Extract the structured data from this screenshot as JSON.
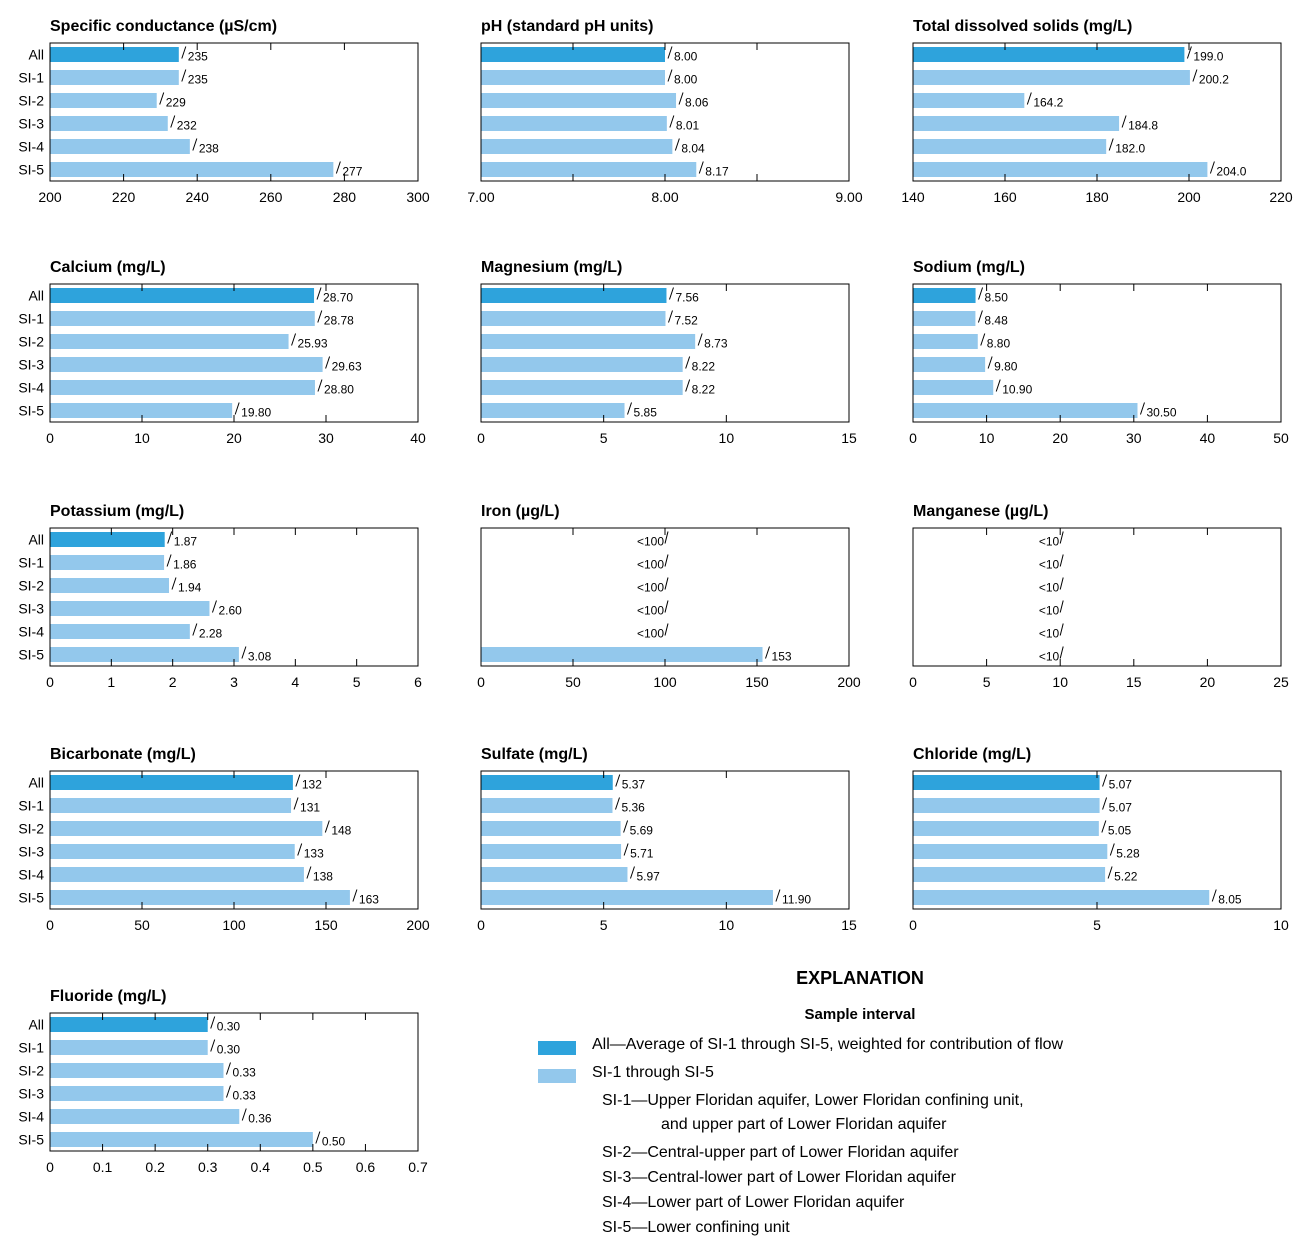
{
  "colors": {
    "all_bar": "#2EA3DC",
    "si_bar": "#93C8EC",
    "frame": "#000000"
  },
  "categories": [
    "All",
    "SI-1",
    "SI-2",
    "SI-3",
    "SI-4",
    "SI-5"
  ],
  "chart_data": [
    {
      "type": "bar",
      "orientation": "horizontal",
      "title": "Specific conductance (µS/cm)",
      "categories": [
        "All",
        "SI-1",
        "SI-2",
        "SI-3",
        "SI-4",
        "SI-5"
      ],
      "values": [
        235,
        235,
        229,
        232,
        238,
        277
      ],
      "labels": [
        "235",
        "235",
        "229",
        "232",
        "238",
        "277"
      ],
      "xlim": [
        200,
        300
      ],
      "ticks": [
        200,
        220,
        240,
        260,
        280,
        300
      ],
      "tick_labels": [
        "200",
        "220",
        "240",
        "260",
        "280",
        "300"
      ]
    },
    {
      "type": "bar",
      "orientation": "horizontal",
      "title": "pH (standard pH units)",
      "categories": [
        "All",
        "SI-1",
        "SI-2",
        "SI-3",
        "SI-4",
        "SI-5"
      ],
      "values": [
        8.0,
        8.0,
        8.06,
        8.01,
        8.04,
        8.17
      ],
      "labels": [
        "8.00",
        "8.00",
        "8.06",
        "8.01",
        "8.04",
        "8.17"
      ],
      "xlim": [
        7,
        9
      ],
      "ticks": [
        7,
        8,
        9
      ],
      "tick_labels": [
        "7.00",
        "8.00",
        "9.00"
      ],
      "minor_ticks": [
        7.5,
        8.5
      ]
    },
    {
      "type": "bar",
      "orientation": "horizontal",
      "title": "Total dissolved solids (mg/L)",
      "categories": [
        "All",
        "SI-1",
        "SI-2",
        "SI-3",
        "SI-4",
        "SI-5"
      ],
      "values": [
        199.0,
        200.2,
        164.2,
        184.8,
        182.0,
        204.0
      ],
      "labels": [
        "199.0",
        "200.2",
        "164.2",
        "184.8",
        "182.0",
        "204.0"
      ],
      "xlim": [
        140,
        220
      ],
      "ticks": [
        140,
        160,
        180,
        200,
        220
      ],
      "tick_labels": [
        "140",
        "160",
        "180",
        "200",
        "220"
      ]
    },
    {
      "type": "bar",
      "orientation": "horizontal",
      "title": "Calcium (mg/L)",
      "categories": [
        "All",
        "SI-1",
        "SI-2",
        "SI-3",
        "SI-4",
        "SI-5"
      ],
      "values": [
        28.7,
        28.78,
        25.93,
        29.63,
        28.8,
        19.8
      ],
      "labels": [
        "28.70",
        "28.78",
        "25.93",
        "29.63",
        "28.80",
        "19.80"
      ],
      "xlim": [
        0,
        40
      ],
      "ticks": [
        0,
        10,
        20,
        30,
        40
      ],
      "tick_labels": [
        "0",
        "10",
        "20",
        "30",
        "40"
      ]
    },
    {
      "type": "bar",
      "orientation": "horizontal",
      "title": "Magnesium (mg/L)",
      "categories": [
        "All",
        "SI-1",
        "SI-2",
        "SI-3",
        "SI-4",
        "SI-5"
      ],
      "values": [
        7.56,
        7.52,
        8.73,
        8.22,
        8.22,
        5.85
      ],
      "labels": [
        "7.56",
        "7.52",
        "8.73",
        "8.22",
        "8.22",
        "5.85"
      ],
      "xlim": [
        0,
        15
      ],
      "ticks": [
        0,
        5,
        10,
        15
      ],
      "tick_labels": [
        "0",
        "5",
        "10",
        "15"
      ]
    },
    {
      "type": "bar",
      "orientation": "horizontal",
      "title": "Sodium (mg/L)",
      "categories": [
        "All",
        "SI-1",
        "SI-2",
        "SI-3",
        "SI-4",
        "SI-5"
      ],
      "values": [
        8.5,
        8.48,
        8.8,
        9.8,
        10.9,
        30.5
      ],
      "labels": [
        "8.50",
        "8.48",
        "8.80",
        "9.80",
        "10.90",
        "30.50"
      ],
      "xlim": [
        0,
        50
      ],
      "ticks": [
        0,
        10,
        20,
        30,
        40,
        50
      ],
      "tick_labels": [
        "0",
        "10",
        "20",
        "30",
        "40",
        "50"
      ]
    },
    {
      "type": "bar",
      "orientation": "horizontal",
      "title": "Potassium (mg/L)",
      "categories": [
        "All",
        "SI-1",
        "SI-2",
        "SI-3",
        "SI-4",
        "SI-5"
      ],
      "values": [
        1.87,
        1.86,
        1.94,
        2.6,
        2.28,
        3.08
      ],
      "labels": [
        "1.87",
        "1.86",
        "1.94",
        "2.60",
        "2.28",
        "3.08"
      ],
      "xlim": [
        0,
        6
      ],
      "ticks": [
        0,
        1,
        2,
        3,
        4,
        5,
        6
      ],
      "tick_labels": [
        "0",
        "1",
        "2",
        "3",
        "4",
        "5",
        "6"
      ]
    },
    {
      "type": "bar",
      "orientation": "horizontal",
      "title": "Iron (µg/L)",
      "categories": [
        "All",
        "SI-1",
        "SI-2",
        "SI-3",
        "SI-4",
        "SI-5"
      ],
      "values": [
        null,
        null,
        null,
        null,
        null,
        153
      ],
      "labels": [
        "<100",
        "<100",
        "<100",
        "<100",
        "<100",
        "153"
      ],
      "censored_at": 100,
      "xlim": [
        0,
        200
      ],
      "ticks": [
        0,
        50,
        100,
        150,
        200
      ],
      "tick_labels": [
        "0",
        "50",
        "100",
        "150",
        "200"
      ]
    },
    {
      "type": "bar",
      "orientation": "horizontal",
      "title": "Manganese (µg/L)",
      "categories": [
        "All",
        "SI-1",
        "SI-2",
        "SI-3",
        "SI-4",
        "SI-5"
      ],
      "values": [
        null,
        null,
        null,
        null,
        null,
        null
      ],
      "labels": [
        "<10",
        "<10",
        "<10",
        "<10",
        "<10",
        "<10"
      ],
      "censored_at": 10,
      "xlim": [
        0,
        25
      ],
      "ticks": [
        0,
        5,
        10,
        15,
        20,
        25
      ],
      "tick_labels": [
        "0",
        "5",
        "10",
        "15",
        "20",
        "25"
      ]
    },
    {
      "type": "bar",
      "orientation": "horizontal",
      "title": "Bicarbonate (mg/L)",
      "categories": [
        "All",
        "SI-1",
        "SI-2",
        "SI-3",
        "SI-4",
        "SI-5"
      ],
      "values": [
        132,
        131,
        148,
        133,
        138,
        163
      ],
      "labels": [
        "132",
        "131",
        "148",
        "133",
        "138",
        "163"
      ],
      "xlim": [
        0,
        200
      ],
      "ticks": [
        0,
        50,
        100,
        150,
        200
      ],
      "tick_labels": [
        "0",
        "50",
        "100",
        "150",
        "200"
      ]
    },
    {
      "type": "bar",
      "orientation": "horizontal",
      "title": "Sulfate (mg/L)",
      "categories": [
        "All",
        "SI-1",
        "SI-2",
        "SI-3",
        "SI-4",
        "SI-5"
      ],
      "values": [
        5.37,
        5.36,
        5.69,
        5.71,
        5.97,
        11.9
      ],
      "labels": [
        "5.37",
        "5.36",
        "5.69",
        "5.71",
        "5.97",
        "11.90"
      ],
      "xlim": [
        0,
        15
      ],
      "ticks": [
        0,
        5,
        10,
        15
      ],
      "tick_labels": [
        "0",
        "5",
        "10",
        "15"
      ]
    },
    {
      "type": "bar",
      "orientation": "horizontal",
      "title": "Chloride (mg/L)",
      "categories": [
        "All",
        "SI-1",
        "SI-2",
        "SI-3",
        "SI-4",
        "SI-5"
      ],
      "values": [
        5.07,
        5.07,
        5.05,
        5.28,
        5.22,
        8.05
      ],
      "labels": [
        "5.07",
        "5.07",
        "5.05",
        "5.28",
        "5.22",
        "8.05"
      ],
      "xlim": [
        0,
        10
      ],
      "ticks": [
        0,
        5,
        10
      ],
      "tick_labels": [
        "0",
        "5",
        "10"
      ]
    },
    {
      "type": "bar",
      "orientation": "horizontal",
      "title": "Fluoride (mg/L)",
      "categories": [
        "All",
        "SI-1",
        "SI-2",
        "SI-3",
        "SI-4",
        "SI-5"
      ],
      "values": [
        0.3,
        0.3,
        0.33,
        0.33,
        0.36,
        0.5
      ],
      "labels": [
        "0.30",
        "0.30",
        "0.33",
        "0.33",
        "0.36",
        "0.50"
      ],
      "xlim": [
        0,
        0.7
      ],
      "ticks": [
        0,
        0.1,
        0.2,
        0.3,
        0.4,
        0.5,
        0.6,
        0.7
      ],
      "tick_labels": [
        "0",
        "0.1",
        "0.2",
        "0.3",
        "0.4",
        "0.5",
        "0.6",
        "0.7"
      ]
    }
  ],
  "explanation": {
    "title": "EXPLANATION",
    "subtitle": "Sample interval",
    "all_entry": "All—Average of SI-1 through SI-5, weighted for contribution of flow",
    "si_entry": "SI-1 through SI-5",
    "si1_line1": "SI-1—Upper Floridan aquifer, Lower Floridan confining unit,",
    "si1_line2": "and upper part of Lower Floridan aquifer",
    "si2": "SI-2—Central-upper part of Lower Floridan aquifer",
    "si3": "SI-3—Central-lower part of Lower Floridan aquifer",
    "si4": "SI-4—Lower part of Lower Floridan aquifer",
    "si5": "SI-5—Lower confining unit"
  }
}
